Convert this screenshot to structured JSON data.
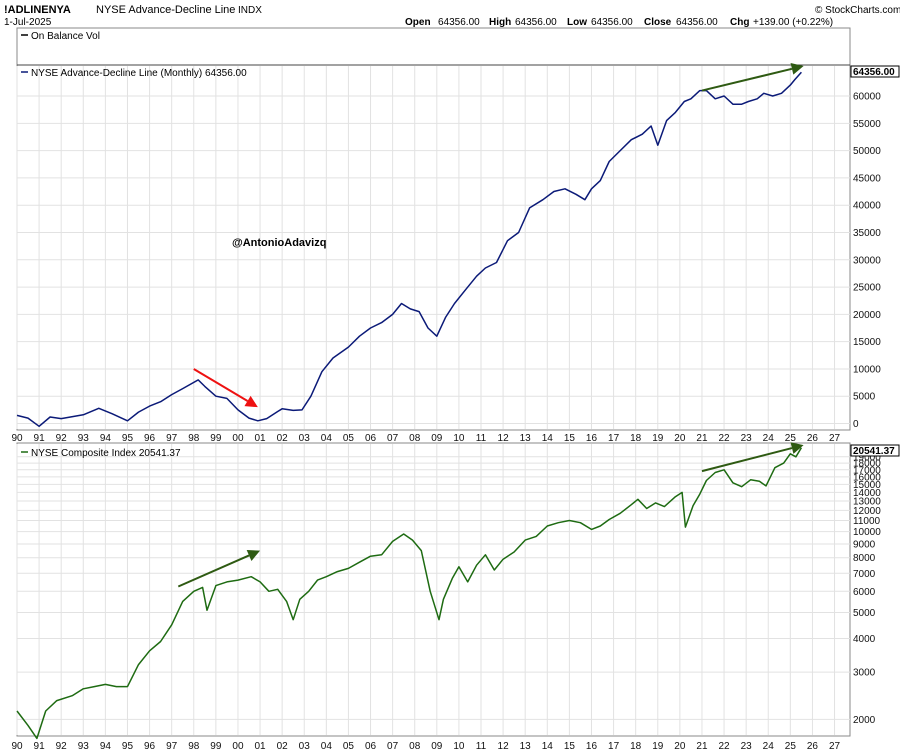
{
  "header": {
    "symbol": "!ADLINENYA",
    "name": "NYSE Advance-Decline Line",
    "exchange": "INDX",
    "date": "1-Jul-2025",
    "open_label": "Open",
    "open": "64356.00",
    "high_label": "High",
    "high": "64356.00",
    "low_label": "Low",
    "low": "64356.00",
    "close_label": "Close",
    "close": "64356.00",
    "chg_label": "Chg",
    "chg": "+139.00 (+0.22%)",
    "brand": "© StockCharts.com"
  },
  "watermark": "@AntonioAdavizq",
  "colors": {
    "ad_line": "#0b1a78",
    "nyse_line": "#1e6b12",
    "red_arrow": "#ee1111",
    "green_arrow": "#2e5a12"
  },
  "chart_data": [
    {
      "type": "line",
      "panel": "indicator",
      "legend": "On Balance Vol",
      "series": []
    },
    {
      "type": "line",
      "legend": "NYSE Advance-Decline Line (Monthly) 64356.00",
      "last_value_label": "64356.00",
      "x_tick_labels": [
        "90",
        "91",
        "92",
        "93",
        "94",
        "95",
        "96",
        "97",
        "98",
        "99",
        "00",
        "01",
        "02",
        "03",
        "04",
        "05",
        "06",
        "07",
        "08",
        "09",
        "10",
        "11",
        "12",
        "13",
        "14",
        "15",
        "16",
        "17",
        "18",
        "19",
        "20",
        "21",
        "22",
        "23",
        "24",
        "25",
        "26",
        "27"
      ],
      "y_tick_labels": [
        "0",
        "5000",
        "10000",
        "15000",
        "20000",
        "25000",
        "30000",
        "35000",
        "40000",
        "45000",
        "50000",
        "55000",
        "60000"
      ],
      "ylim": [
        -1000,
        65500
      ],
      "x": [
        1990.0,
        1990.5,
        1991.0,
        1991.5,
        1992.0,
        1993.0,
        1993.7,
        1994.3,
        1995.0,
        1995.5,
        1996.0,
        1996.5,
        1997.0,
        1997.5,
        1998.2,
        1998.5,
        1999.0,
        1999.5,
        2000.0,
        2000.5,
        2000.9,
        2001.3,
        2001.8,
        2002.0,
        2002.5,
        2002.9,
        2003.3,
        2003.8,
        2004.3,
        2005.0,
        2005.5,
        2006.0,
        2006.5,
        2007.0,
        2007.4,
        2007.8,
        2008.2,
        2008.6,
        2009.0,
        2009.4,
        2009.8,
        2010.3,
        2010.8,
        2011.2,
        2011.7,
        2012.2,
        2012.7,
        2013.2,
        2013.8,
        2014.3,
        2014.8,
        2015.3,
        2015.7,
        2016.0,
        2016.4,
        2016.8,
        2017.3,
        2017.8,
        2018.3,
        2018.7,
        2019.0,
        2019.4,
        2019.8,
        2020.2,
        2020.5,
        2020.9,
        2021.2,
        2021.6,
        2022.0,
        2022.4,
        2022.8,
        2023.1,
        2023.5,
        2023.8,
        2024.2,
        2024.6,
        2025.0,
        2025.2,
        2025.5
      ],
      "y": [
        1500,
        1000,
        -500,
        1200,
        900,
        1600,
        2800,
        1800,
        500,
        2100,
        3200,
        4000,
        5300,
        6400,
        8000,
        6800,
        5000,
        4600,
        2500,
        1000,
        500,
        900,
        2200,
        2700,
        2400,
        2500,
        5000,
        9500,
        12000,
        14000,
        16000,
        17500,
        18500,
        20000,
        22000,
        21000,
        20500,
        17500,
        16000,
        19500,
        22000,
        24500,
        27000,
        28500,
        29500,
        33500,
        35000,
        39500,
        41000,
        42500,
        43000,
        42000,
        41000,
        43000,
        44500,
        48000,
        50000,
        52000,
        53000,
        54500,
        51000,
        55500,
        57000,
        59000,
        59500,
        61000,
        61000,
        59500,
        60000,
        58500,
        58500,
        59000,
        59500,
        60500,
        60000,
        60500,
        62000,
        63000,
        64356
      ]
    },
    {
      "type": "line",
      "y_scale": "log",
      "legend": "NYSE Composite Index 20541.37",
      "last_value_label": "20541.37",
      "x_tick_labels": [
        "90",
        "91",
        "92",
        "93",
        "94",
        "95",
        "96",
        "97",
        "98",
        "99",
        "00",
        "01",
        "02",
        "03",
        "04",
        "05",
        "06",
        "07",
        "08",
        "09",
        "10",
        "11",
        "12",
        "13",
        "14",
        "15",
        "16",
        "17",
        "18",
        "19",
        "20",
        "21",
        "22",
        "23",
        "24",
        "25",
        "26",
        "27"
      ],
      "y_tick_labels": [
        "2000",
        "3000",
        "4000",
        "5000",
        "6000",
        "7000",
        "8000",
        "9000",
        "10000",
        "11000",
        "12000",
        "13000",
        "14000",
        "15000",
        "16000",
        "17000",
        "18000",
        "19000"
      ],
      "ylim": [
        1750,
        21200
      ],
      "x": [
        1990.0,
        1990.5,
        1990.9,
        1991.3,
        1991.8,
        1992.5,
        1993.0,
        1993.5,
        1994.0,
        1994.5,
        1995.0,
        1995.5,
        1996.0,
        1996.5,
        1997.0,
        1997.5,
        1998.0,
        1998.4,
        1998.6,
        1999.0,
        1999.5,
        2000.0,
        2000.6,
        2001.0,
        2001.4,
        2001.8,
        2002.2,
        2002.5,
        2002.8,
        2003.2,
        2003.6,
        2004.0,
        2004.5,
        2005.0,
        2005.5,
        2006.0,
        2006.5,
        2007.0,
        2007.5,
        2007.9,
        2008.3,
        2008.7,
        2009.1,
        2009.3,
        2009.7,
        2010.0,
        2010.4,
        2010.8,
        2011.2,
        2011.6,
        2012.0,
        2012.5,
        2013.0,
        2013.5,
        2014.0,
        2014.5,
        2015.0,
        2015.5,
        2016.0,
        2016.4,
        2016.8,
        2017.3,
        2017.8,
        2018.1,
        2018.5,
        2018.9,
        2019.3,
        2019.8,
        2020.1,
        2020.25,
        2020.6,
        2020.9,
        2021.2,
        2021.6,
        2022.0,
        2022.4,
        2022.8,
        2023.2,
        2023.6,
        2023.9,
        2024.3,
        2024.7,
        2025.0,
        2025.25,
        2025.5
      ],
      "y": [
        2150,
        1900,
        1700,
        2150,
        2350,
        2450,
        2600,
        2650,
        2700,
        2650,
        2650,
        3200,
        3600,
        3900,
        4500,
        5500,
        6000,
        6200,
        5100,
        6300,
        6500,
        6600,
        6800,
        6500,
        6000,
        6100,
        5500,
        4700,
        5600,
        6000,
        6600,
        6800,
        7100,
        7300,
        7700,
        8100,
        8200,
        9200,
        9800,
        9300,
        8500,
        6000,
        4700,
        5600,
        6700,
        7400,
        6500,
        7500,
        8200,
        7200,
        7900,
        8400,
        9300,
        9600,
        10500,
        10800,
        11000,
        10800,
        10200,
        10500,
        11100,
        11700,
        12600,
        13200,
        12200,
        12800,
        12400,
        13500,
        14000,
        10400,
        12500,
        13800,
        15500,
        16600,
        17000,
        15200,
        14700,
        15600,
        15400,
        14800,
        17300,
        18000,
        19500,
        19000,
        20541
      ]
    }
  ],
  "annotations": {
    "red_arrow": {
      "x_from": 1998.0,
      "y_from": 10000,
      "x_to": 2000.9,
      "y_to": 3000
    },
    "ad_green_arrow": {
      "x_from": 2021.0,
      "y_from": 61000,
      "x_to": 2025.6,
      "y_to": 65500
    },
    "nyse_green_arrow_1": {
      "x_from": 1997.3,
      "y_from": 6250,
      "x_to": 2001.0,
      "y_to": 8500
    },
    "nyse_green_arrow_2": {
      "x_from": 2021.0,
      "y_from": 16800,
      "x_to": 2025.6,
      "y_to": 21000
    }
  }
}
